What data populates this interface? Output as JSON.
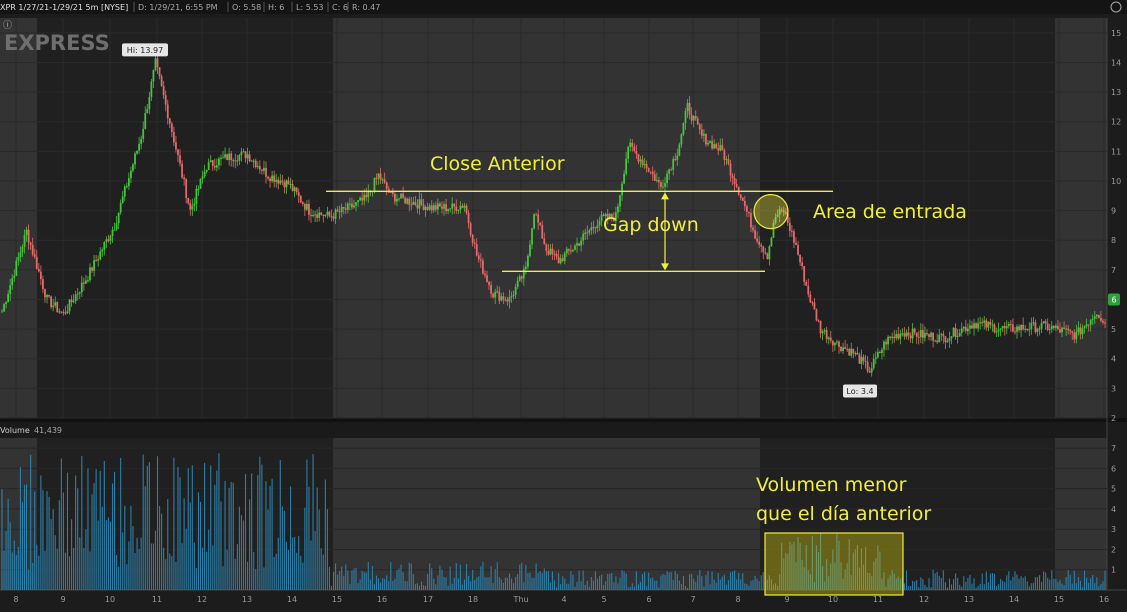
{
  "header": {
    "symbol_info": "XPR 1/27/21-1/29/21 5m [NYSE]",
    "d": "D: 1/29/21, 6:55 PM",
    "o": "O: 5.58",
    "h": "H: 6",
    "l": "L: 5.53",
    "c": "C: 6",
    "r": "R: 0.47"
  },
  "watermark": "EXPRESS",
  "price_badge": "6",
  "colors": {
    "up": "#45c53c",
    "down": "#e46a6a",
    "volume": "#2d7fa8",
    "annotation": "#f2ef3c",
    "background": "#1c1c1c",
    "shade_light": "#333333",
    "shade_dark": "#202020",
    "badge": "#2e9e3f"
  },
  "chart_data": [
    {
      "type": "candlestick",
      "interval": "5m",
      "x_tick_labels": [
        "8",
        "9",
        "10",
        "11",
        "12",
        "13",
        "14",
        "15",
        "16",
        "17",
        "18",
        "Thu",
        "4",
        "5",
        "6",
        "7",
        "8",
        "9",
        "10",
        "11",
        "12",
        "13",
        "14",
        "15",
        "16"
      ],
      "ylim": [
        2,
        15.5
      ],
      "y_ticks": [
        2,
        3,
        4,
        5,
        6,
        7,
        8,
        9,
        10,
        11,
        12,
        13,
        14,
        15
      ],
      "hi_label": "Hi: 13.97",
      "lo_label": "Lo: 3.4",
      "prev_close_level": 9.65,
      "gap_bottom_level": 6.95,
      "entry_level": 9.0,
      "checkpoints": [
        [
          0,
          5.6
        ],
        [
          12,
          8.3
        ],
        [
          22,
          6.0
        ],
        [
          30,
          5.5
        ],
        [
          42,
          6.8
        ],
        [
          55,
          8.5
        ],
        [
          68,
          11.5
        ],
        [
          75,
          13.97
        ],
        [
          82,
          12.0
        ],
        [
          92,
          9.0
        ],
        [
          100,
          10.5
        ],
        [
          110,
          10.8
        ],
        [
          120,
          10.9
        ],
        [
          130,
          10.2
        ],
        [
          140,
          9.9
        ],
        [
          150,
          9.0
        ],
        [
          160,
          8.8
        ],
        [
          170,
          9.1
        ],
        [
          178,
          9.4
        ],
        [
          184,
          10.2
        ],
        [
          190,
          9.5
        ],
        [
          200,
          9.3
        ],
        [
          210,
          9.1
        ],
        [
          220,
          9.1
        ],
        [
          226,
          9.2
        ],
        [
          232,
          7.5
        ],
        [
          240,
          6.2
        ],
        [
          248,
          6.0
        ],
        [
          256,
          7.0
        ],
        [
          260,
          9.0
        ],
        [
          266,
          7.7
        ],
        [
          272,
          7.3
        ],
        [
          280,
          7.8
        ],
        [
          292,
          8.7
        ],
        [
          300,
          8.8
        ],
        [
          306,
          11.2
        ],
        [
          315,
          10.5
        ],
        [
          322,
          9.8
        ],
        [
          330,
          11.0
        ],
        [
          335,
          12.5
        ],
        [
          342,
          11.5
        ],
        [
          352,
          11.0
        ],
        [
          360,
          9.7
        ],
        [
          368,
          8.2
        ],
        [
          374,
          7.5
        ],
        [
          378,
          8.8
        ],
        [
          382,
          9.0
        ],
        [
          388,
          7.8
        ],
        [
          394,
          6.2
        ],
        [
          400,
          5.0
        ],
        [
          408,
          4.5
        ],
        [
          416,
          4.2
        ],
        [
          424,
          3.6
        ],
        [
          432,
          4.6
        ],
        [
          440,
          4.9
        ],
        [
          460,
          4.7
        ],
        [
          475,
          5.2
        ],
        [
          490,
          5.0
        ],
        [
          510,
          5.1
        ],
        [
          525,
          4.8
        ],
        [
          535,
          5.6
        ],
        [
          540,
          5.1
        ]
      ],
      "candle_count": 540
    },
    {
      "type": "bar",
      "title": "Volume",
      "last_value": "41,439",
      "ylim": [
        0,
        7.5
      ],
      "y_ticks": [
        1,
        2,
        3,
        4,
        5,
        6,
        7
      ]
    }
  ],
  "annotations": {
    "close_anterior": "Close Anterior",
    "gap_down": "Gap down",
    "area_entrada": "Area de entrada",
    "volumen_line1": "Volumen menor",
    "volumen_line2": "que el día anterior"
  }
}
